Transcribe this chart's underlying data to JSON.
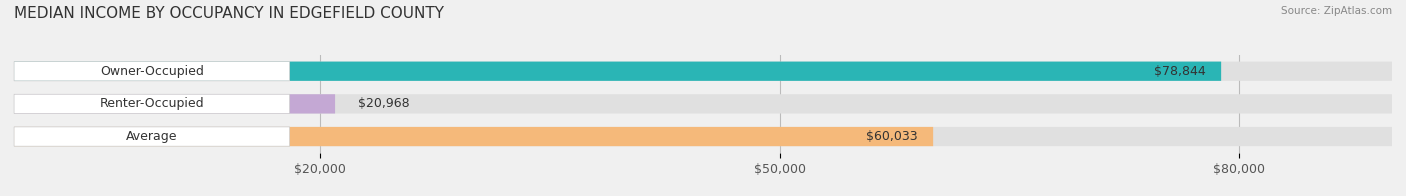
{
  "title": "MEDIAN INCOME BY OCCUPANCY IN EDGEFIELD COUNTY",
  "source": "Source: ZipAtlas.com",
  "categories": [
    "Owner-Occupied",
    "Renter-Occupied",
    "Average"
  ],
  "values": [
    78844,
    20968,
    60033
  ],
  "bar_colors": [
    "#2ab5b5",
    "#c4a8d4",
    "#f5b97a"
  ],
  "value_labels": [
    "$78,844",
    "$20,968",
    "$60,033"
  ],
  "xlim": [
    0,
    90000
  ],
  "xticks": [
    20000,
    50000,
    80000
  ],
  "xtick_labels": [
    "$20,000",
    "$50,000",
    "$80,000"
  ],
  "background_color": "#f0f0f0",
  "bar_background_color": "#e0e0e0",
  "title_fontsize": 11,
  "label_fontsize": 9,
  "value_fontsize": 9
}
